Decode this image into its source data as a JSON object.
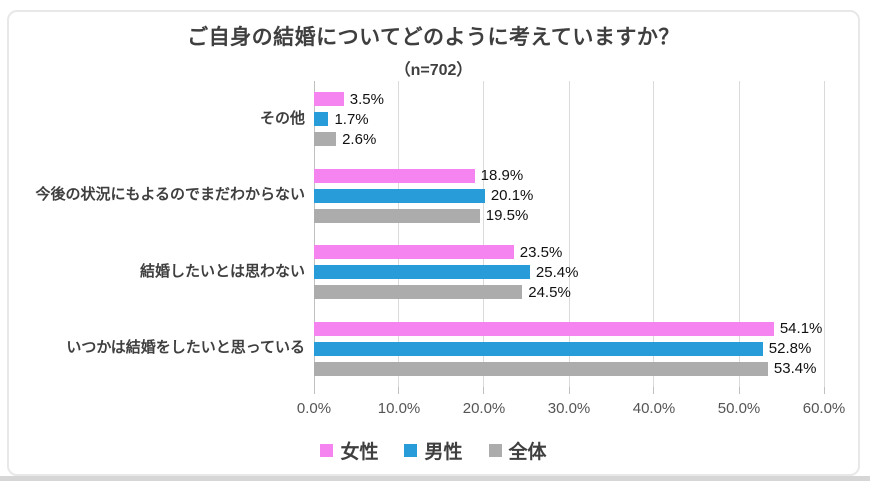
{
  "chart_data": {
    "type": "bar",
    "orientation": "horizontal",
    "title": "ご自身の結婚についてどのように考えていますか？",
    "subtitle": "（n=702）",
    "categories": [
      "その他",
      "今後の状況にもよるのでまだわからない",
      "結婚したいとは思わない",
      "いつかは結婚をしたいと思っている"
    ],
    "series": [
      {
        "name": "女性",
        "color": "#f584f0",
        "values": [
          3.5,
          18.9,
          23.5,
          54.1
        ]
      },
      {
        "name": "男性",
        "color": "#289cd9",
        "values": [
          1.7,
          20.1,
          25.4,
          52.8
        ]
      },
      {
        "name": "全体",
        "color": "#acacac",
        "values": [
          2.6,
          19.5,
          24.5,
          53.4
        ]
      }
    ],
    "value_suffix": "%",
    "xlabel": "",
    "ylabel": "",
    "xlim": [
      0,
      60
    ],
    "x_ticks": [
      "0.0%",
      "10.0%",
      "20.0%",
      "30.0%",
      "40.0%",
      "50.0%",
      "60.0%"
    ],
    "grid": true,
    "legend_position": "bottom"
  },
  "colors": {
    "title_text": "#3f3f3f",
    "value_text": "#111111",
    "axis_text": "#555555",
    "gridline": "#dadada",
    "frame_border": "#e8e8e8"
  }
}
